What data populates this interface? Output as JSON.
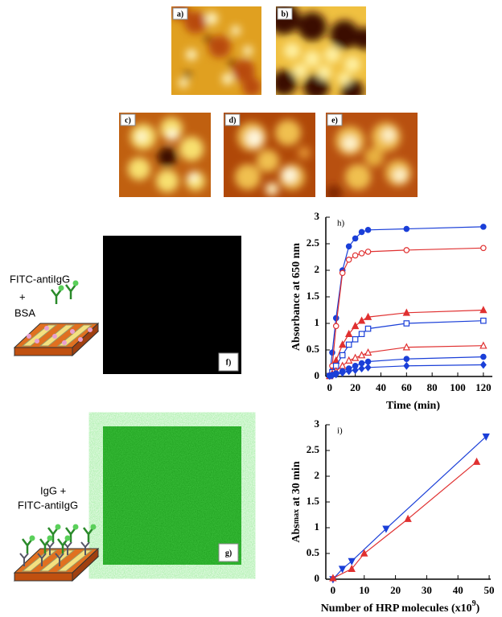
{
  "images": [
    {
      "label": "a)"
    },
    {
      "label": "b)"
    },
    {
      "label": "c)"
    },
    {
      "label": "d)"
    },
    {
      "label": "e)"
    }
  ],
  "panels": [
    {
      "label": "f)"
    },
    {
      "label": "g)"
    }
  ],
  "schematics": [
    {
      "lines": [
        "FITC-antiIgG",
        "+",
        "BSA"
      ]
    },
    {
      "lines": [
        "IgG +",
        "FITC-antiIgG"
      ]
    }
  ],
  "chart_data": [
    {
      "type": "line",
      "panel_label": "h)",
      "xlabel": "Time (min)",
      "ylabel": "Absorbance at 650 nm",
      "x": [
        0,
        2,
        5,
        10,
        15,
        20,
        25,
        30,
        60,
        120
      ],
      "xlim": [
        -3,
        127
      ],
      "xticks": [
        0,
        20,
        40,
        60,
        80,
        100,
        120
      ],
      "ylim": [
        0,
        3
      ],
      "yticks": [
        0,
        0.5,
        1,
        1.5,
        2,
        2.5,
        3
      ],
      "grid": false,
      "series": [
        {
          "color": "#1a3fd8",
          "marker": "circle",
          "filled": true,
          "values": [
            0.02,
            0.45,
            1.1,
            2.0,
            2.45,
            2.6,
            2.72,
            2.76,
            2.78,
            2.82
          ]
        },
        {
          "color": "#e03030",
          "marker": "circle",
          "filled": false,
          "values": [
            0.02,
            0.2,
            0.95,
            1.95,
            2.2,
            2.28,
            2.32,
            2.35,
            2.38,
            2.42
          ]
        },
        {
          "color": "#e03030",
          "marker": "triangle",
          "filled": true,
          "values": [
            0.01,
            0.1,
            0.3,
            0.6,
            0.8,
            0.95,
            1.05,
            1.12,
            1.2,
            1.25
          ]
        },
        {
          "color": "#1a3fd8",
          "marker": "square",
          "filled": false,
          "values": [
            0.01,
            0.08,
            0.2,
            0.4,
            0.6,
            0.7,
            0.8,
            0.9,
            1.0,
            1.05
          ]
        },
        {
          "color": "#e03030",
          "marker": "triangle",
          "filled": false,
          "values": [
            0.01,
            0.05,
            0.1,
            0.2,
            0.3,
            0.35,
            0.4,
            0.45,
            0.55,
            0.58
          ]
        },
        {
          "color": "#1a3fd8",
          "marker": "circle",
          "filled": true,
          "values": [
            0.01,
            0.03,
            0.06,
            0.1,
            0.15,
            0.2,
            0.25,
            0.28,
            0.33,
            0.37
          ]
        },
        {
          "color": "#1a3fd8",
          "marker": "diamond",
          "filled": true,
          "values": [
            0.01,
            0.02,
            0.04,
            0.07,
            0.1,
            0.12,
            0.15,
            0.17,
            0.2,
            0.22
          ]
        }
      ]
    },
    {
      "type": "scatter",
      "panel_label": "i)",
      "xlabel": "Number of HRP molecules (x10",
      "xlabel_sup": "9",
      "xlabel_end": ")",
      "ylabel": "Abs",
      "ylabel_sub": "max",
      "ylabel_end": " at 30 min",
      "xlim": [
        -2.3,
        50.5
      ],
      "xticks": [
        0,
        10,
        20,
        30,
        40,
        50
      ],
      "ylim": [
        0,
        3
      ],
      "yticks": [
        0,
        0.5,
        1,
        1.5,
        2,
        2.5,
        3
      ],
      "grid": false,
      "series": [
        {
          "color": "#1a3fd8",
          "marker": "triangle-down",
          "filled": true,
          "x": [
            0,
            3,
            6,
            17,
            49
          ],
          "values": [
            0,
            0.2,
            0.35,
            0.98,
            2.77
          ]
        },
        {
          "color": "#e03030",
          "marker": "triangle",
          "filled": true,
          "x": [
            0,
            6,
            10,
            24,
            46
          ],
          "values": [
            0.02,
            0.2,
            0.5,
            1.17,
            2.28
          ]
        }
      ]
    }
  ]
}
